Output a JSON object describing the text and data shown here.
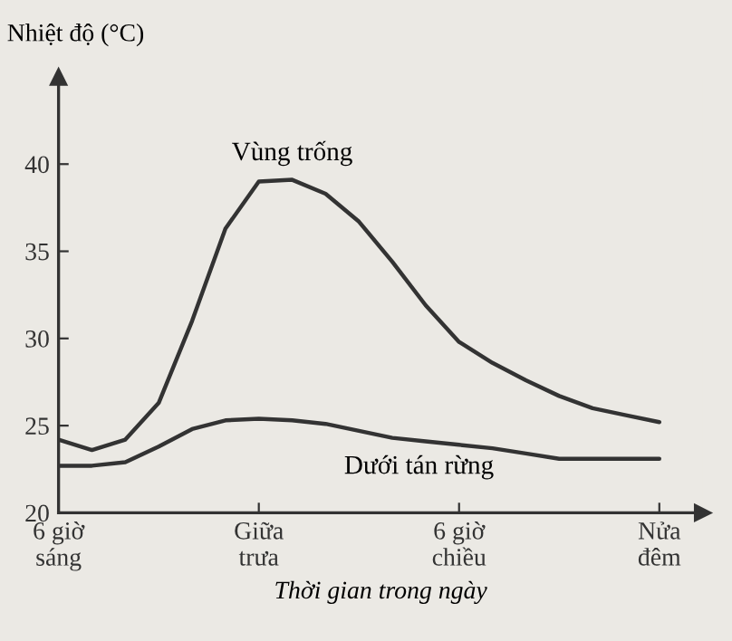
{
  "chart_data": {
    "type": "line",
    "ylabel": "Nhiệt độ (°C)",
    "xlabel": "Thời gian trong ngày",
    "categories": [
      "6 giờ\nsáng",
      null,
      null,
      null,
      null,
      null,
      "Giữa\ntrưa",
      null,
      null,
      null,
      null,
      null,
      "6 giờ\nchiều",
      null,
      null,
      null,
      null,
      null,
      "Nửa\nđêm"
    ],
    "ylim": [
      20,
      45
    ],
    "yticks": [
      20,
      25,
      30,
      35,
      40
    ],
    "grid": false,
    "marker": "none",
    "line_style": "solid",
    "series": [
      {
        "name": "Vùng trống",
        "color": "#333333",
        "values": [
          24.2,
          23.6,
          24.2,
          26.3,
          31.0,
          36.3,
          39.0,
          39.1,
          38.3,
          36.7,
          34.4,
          31.9,
          29.8,
          28.6,
          27.6,
          26.7,
          26.0,
          25.6,
          25.2
        ]
      },
      {
        "name": "Dưới tán rừng",
        "color": "#333333",
        "values": [
          22.7,
          22.7,
          22.9,
          23.8,
          24.8,
          25.3,
          25.4,
          25.3,
          25.1,
          24.7,
          24.3,
          24.1,
          23.9,
          23.7,
          23.4,
          23.1,
          23.1,
          23.1,
          23.1
        ]
      }
    ]
  }
}
